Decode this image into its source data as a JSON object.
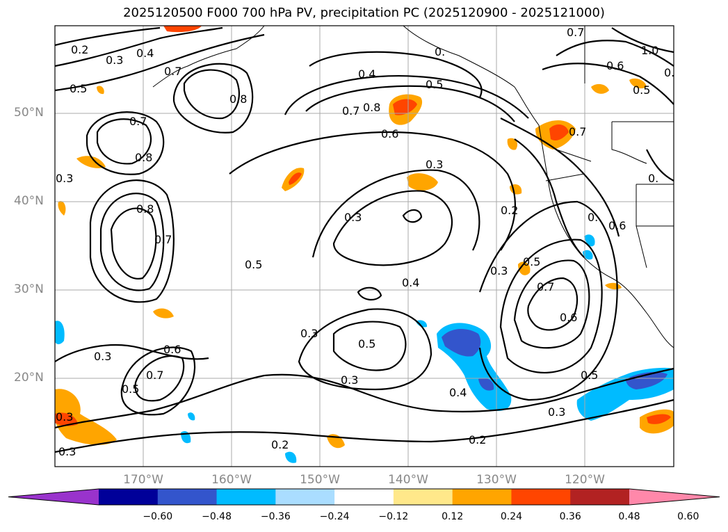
{
  "title": "2025120500 F000 700 hPa PV, precipitation PC (2025120900 - 2025121000)",
  "lat_labels": [
    "50°N",
    "40°N",
    "30°N",
    "20°N"
  ],
  "lon_labels": [
    "170°W",
    "160°W",
    "150°W",
    "140°W",
    "130°W",
    "120°W"
  ],
  "colorbar": {
    "ticks": [
      "−0.60",
      "−0.48",
      "−0.36",
      "−0.24",
      "−0.12",
      "0.12",
      "0.24",
      "0.36",
      "0.48",
      "0.60"
    ],
    "colors": [
      "#9933cc",
      "#000099",
      "#3355cc",
      "#00bbff",
      "#aaddff",
      "#ffffff",
      "#ffe88a",
      "#ffa500",
      "#ff4500",
      "#b22222",
      "#ff88aa"
    ]
  },
  "contour_labels": [
    "0.2",
    "0.3",
    "0.4",
    "0.5",
    "0.6",
    "0.7",
    "0.8",
    "1.0"
  ],
  "colors": {
    "land_grid": "#aaaaaa",
    "positive_light": "#ffa500",
    "positive_strong": "#ff4500",
    "negative_light": "#00bbff",
    "negative_strong": "#3355cc"
  }
}
